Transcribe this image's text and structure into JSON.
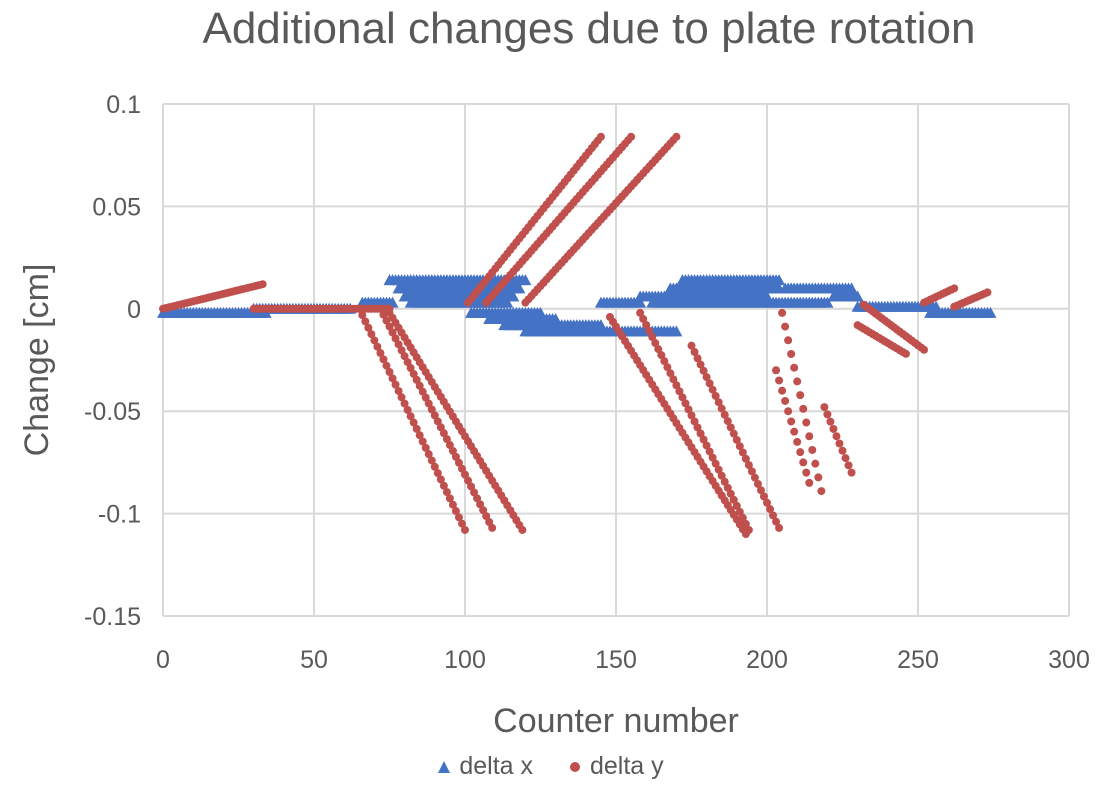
{
  "chart_data": {
    "type": "scatter",
    "title": "Additional changes due to plate rotation",
    "xlabel": "Counter number",
    "ylabel": "Change [cm]",
    "xlim": [
      0,
      300
    ],
    "ylim": [
      -0.15,
      0.1
    ],
    "x_ticks": [
      0,
      50,
      100,
      150,
      200,
      250,
      300
    ],
    "x_tick_labels": [
      "0",
      "50",
      "100",
      "150",
      "200",
      "250",
      "300"
    ],
    "y_ticks": [
      0.1,
      0.05,
      0,
      -0.05,
      -0.1,
      -0.15
    ],
    "y_tick_labels": [
      "0.1",
      "0.05",
      "0",
      "-0.05",
      "-0.1",
      "-0.15"
    ],
    "grid": true,
    "legend_position": "bottom",
    "series": [
      {
        "name": "delta x",
        "marker": "triangle",
        "color": "#4472C4",
        "segments": [
          {
            "x": [
              0,
              34
            ],
            "y": [
              -0.002,
              -0.002
            ]
          },
          {
            "x": [
              30,
              62
            ],
            "y": [
              0,
              0
            ]
          },
          {
            "x": [
              66,
              76
            ],
            "y": [
              0.003,
              0.003
            ]
          },
          {
            "x": [
              75,
              120
            ],
            "y": [
              0.014,
              0.014
            ]
          },
          {
            "x": [
              78,
              118
            ],
            "y": [
              0.01,
              0.01
            ]
          },
          {
            "x": [
              80,
              116
            ],
            "y": [
              0.006,
              0.006
            ]
          },
          {
            "x": [
              82,
              114
            ],
            "y": [
              0.003,
              0.003
            ]
          },
          {
            "x": [
              102,
              125
            ],
            "y": [
              -0.002,
              -0.002
            ]
          },
          {
            "x": [
              108,
              130
            ],
            "y": [
              -0.005,
              -0.005
            ]
          },
          {
            "x": [
              113,
              145
            ],
            "y": [
              -0.008,
              -0.008
            ]
          },
          {
            "x": [
              120,
              170
            ],
            "y": [
              -0.011,
              -0.011
            ]
          },
          {
            "x": [
              145,
              158
            ],
            "y": [
              0.003,
              0.003
            ]
          },
          {
            "x": [
              158,
              200
            ],
            "y": [
              0.006,
              0.006
            ]
          },
          {
            "x": [
              168,
              204
            ],
            "y": [
              0.01,
              0.01
            ]
          },
          {
            "x": [
              172,
              204
            ],
            "y": [
              0.014,
              0.014
            ]
          },
          {
            "x": [
              162,
              202
            ],
            "y": [
              0.003,
              0.003
            ]
          },
          {
            "x": [
              206,
              228
            ],
            "y": [
              0.01,
              0.01
            ]
          },
          {
            "x": [
              203,
              220
            ],
            "y": [
              0.003,
              0.003
            ]
          },
          {
            "x": [
              222,
              230
            ],
            "y": [
              0.006,
              0.006
            ]
          },
          {
            "x": [
              230,
              256
            ],
            "y": [
              0.001,
              0.001
            ]
          },
          {
            "x": [
              254,
              274
            ],
            "y": [
              -0.002,
              -0.002
            ]
          }
        ]
      },
      {
        "name": "delta y",
        "marker": "circle",
        "color": "#C0504D",
        "segments": [
          {
            "x": [
              0,
              33
            ],
            "y": [
              0,
              0.012
            ]
          },
          {
            "x": [
              30,
              75
            ],
            "y": [
              0,
              0
            ]
          },
          {
            "x": [
              65,
              100
            ],
            "y": [
              0,
              -0.108
            ]
          },
          {
            "x": [
              72,
              109
            ],
            "y": [
              0,
              -0.107
            ]
          },
          {
            "x": [
              75,
              119
            ],
            "y": [
              -0.002,
              -0.108
            ]
          },
          {
            "x": [
              101,
              145
            ],
            "y": [
              0.003,
              0.084
            ]
          },
          {
            "x": [
              107,
              155
            ],
            "y": [
              0.003,
              0.084
            ]
          },
          {
            "x": [
              120,
              170
            ],
            "y": [
              0.003,
              0.084
            ]
          },
          {
            "x": [
              148,
              193
            ],
            "y": [
              -0.004,
              -0.11
            ]
          },
          {
            "x": [
              158,
              194
            ],
            "y": [
              -0.002,
              -0.108
            ]
          },
          {
            "x": [
              175,
              204
            ],
            "y": [
              -0.018,
              -0.107
            ]
          },
          {
            "x": [
              205,
              218
            ],
            "y": [
              -0.002,
              -0.089
            ]
          },
          {
            "x": [
              203,
              214
            ],
            "y": [
              -0.03,
              -0.085
            ]
          },
          {
            "x": [
              219,
              228
            ],
            "y": [
              -0.048,
              -0.08
            ]
          },
          {
            "x": [
              230,
              246
            ],
            "y": [
              -0.008,
              -0.022
            ]
          },
          {
            "x": [
              232,
              252
            ],
            "y": [
              0.002,
              -0.02
            ]
          },
          {
            "x": [
              252,
              262
            ],
            "y": [
              0.003,
              0.01
            ]
          },
          {
            "x": [
              262,
              273
            ],
            "y": [
              0.001,
              0.008
            ]
          }
        ]
      }
    ]
  }
}
